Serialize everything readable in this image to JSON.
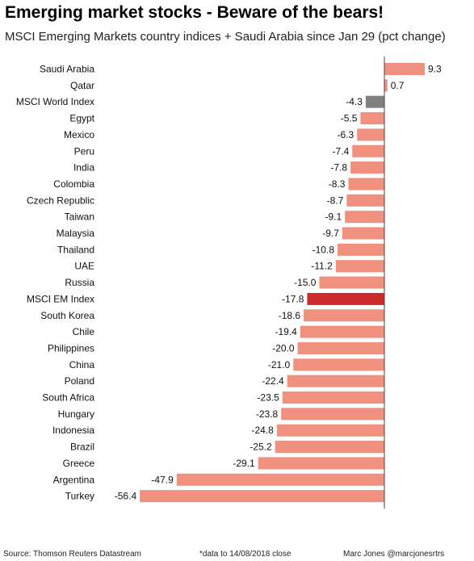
{
  "header": {
    "title": "Emerging market stocks - Beware of the bears!",
    "subtitle": "MSCI Emerging Markets country indices + Saudi Arabia since Jan 29 (pct change)"
  },
  "footer": {
    "source": "Source: Thomson Reuters Datastream",
    "note": "*data to 14/08/2018 close",
    "credit": "Marc Jones @marcjonesrtrs"
  },
  "colors": {
    "default_bar": "#f0907e",
    "world_index_bar": "#808080",
    "em_index_bar": "#cc2a2a",
    "zero_line": "#444444"
  },
  "chart_data": {
    "type": "bar",
    "orientation": "horizontal",
    "title": "Emerging market stocks - Beware of the bears!",
    "subtitle": "MSCI Emerging Markets country indices + Saudi Arabia since Jan 29 (pct change)",
    "xlim": [
      -62,
      13
    ],
    "grid": false,
    "legend": "none",
    "categories": [
      "Saudi Arabia",
      "Qatar",
      "MSCI World Index",
      "Egypt",
      "Mexico",
      "Peru",
      "India",
      "Colombia",
      "Czech Republic",
      "Taiwan",
      "Malaysia",
      "Thailand",
      "UAE",
      "Russia",
      "MSCI EM Index",
      "South Korea",
      "Chile",
      "Philippines",
      "China",
      "Poland",
      "South Africa",
      "Hungary",
      "Indonesia",
      "Brazil",
      "Greece",
      "Argentina",
      "Turkey"
    ],
    "values": [
      9.3,
      0.7,
      -4.3,
      -5.5,
      -6.3,
      -7.4,
      -7.8,
      -8.3,
      -8.7,
      -9.1,
      -9.7,
      -10.8,
      -11.2,
      -15.0,
      -17.8,
      -18.6,
      -19.4,
      -20.0,
      -21.0,
      -22.4,
      -23.5,
      -23.8,
      -24.8,
      -25.2,
      -29.1,
      -47.9,
      -56.4
    ],
    "labels": [
      "9.3",
      "0.7",
      "-4.3",
      "-5.5",
      "-6.3",
      "-7.4",
      "-7.8",
      "-8.3",
      "-8.7",
      "-9.1",
      "-9.7",
      "-10.8",
      "-11.2",
      "-15.0",
      "-17.8",
      "-18.6",
      "-19.4",
      "-20.0",
      "-21.0",
      "-22.4",
      "-23.5",
      "-23.8",
      "-24.8",
      "-25.2",
      "-29.1",
      "-47.9",
      "-56.4"
    ],
    "highlights": {
      "MSCI World Index": "world_index_bar",
      "MSCI EM Index": "em_index_bar"
    }
  }
}
